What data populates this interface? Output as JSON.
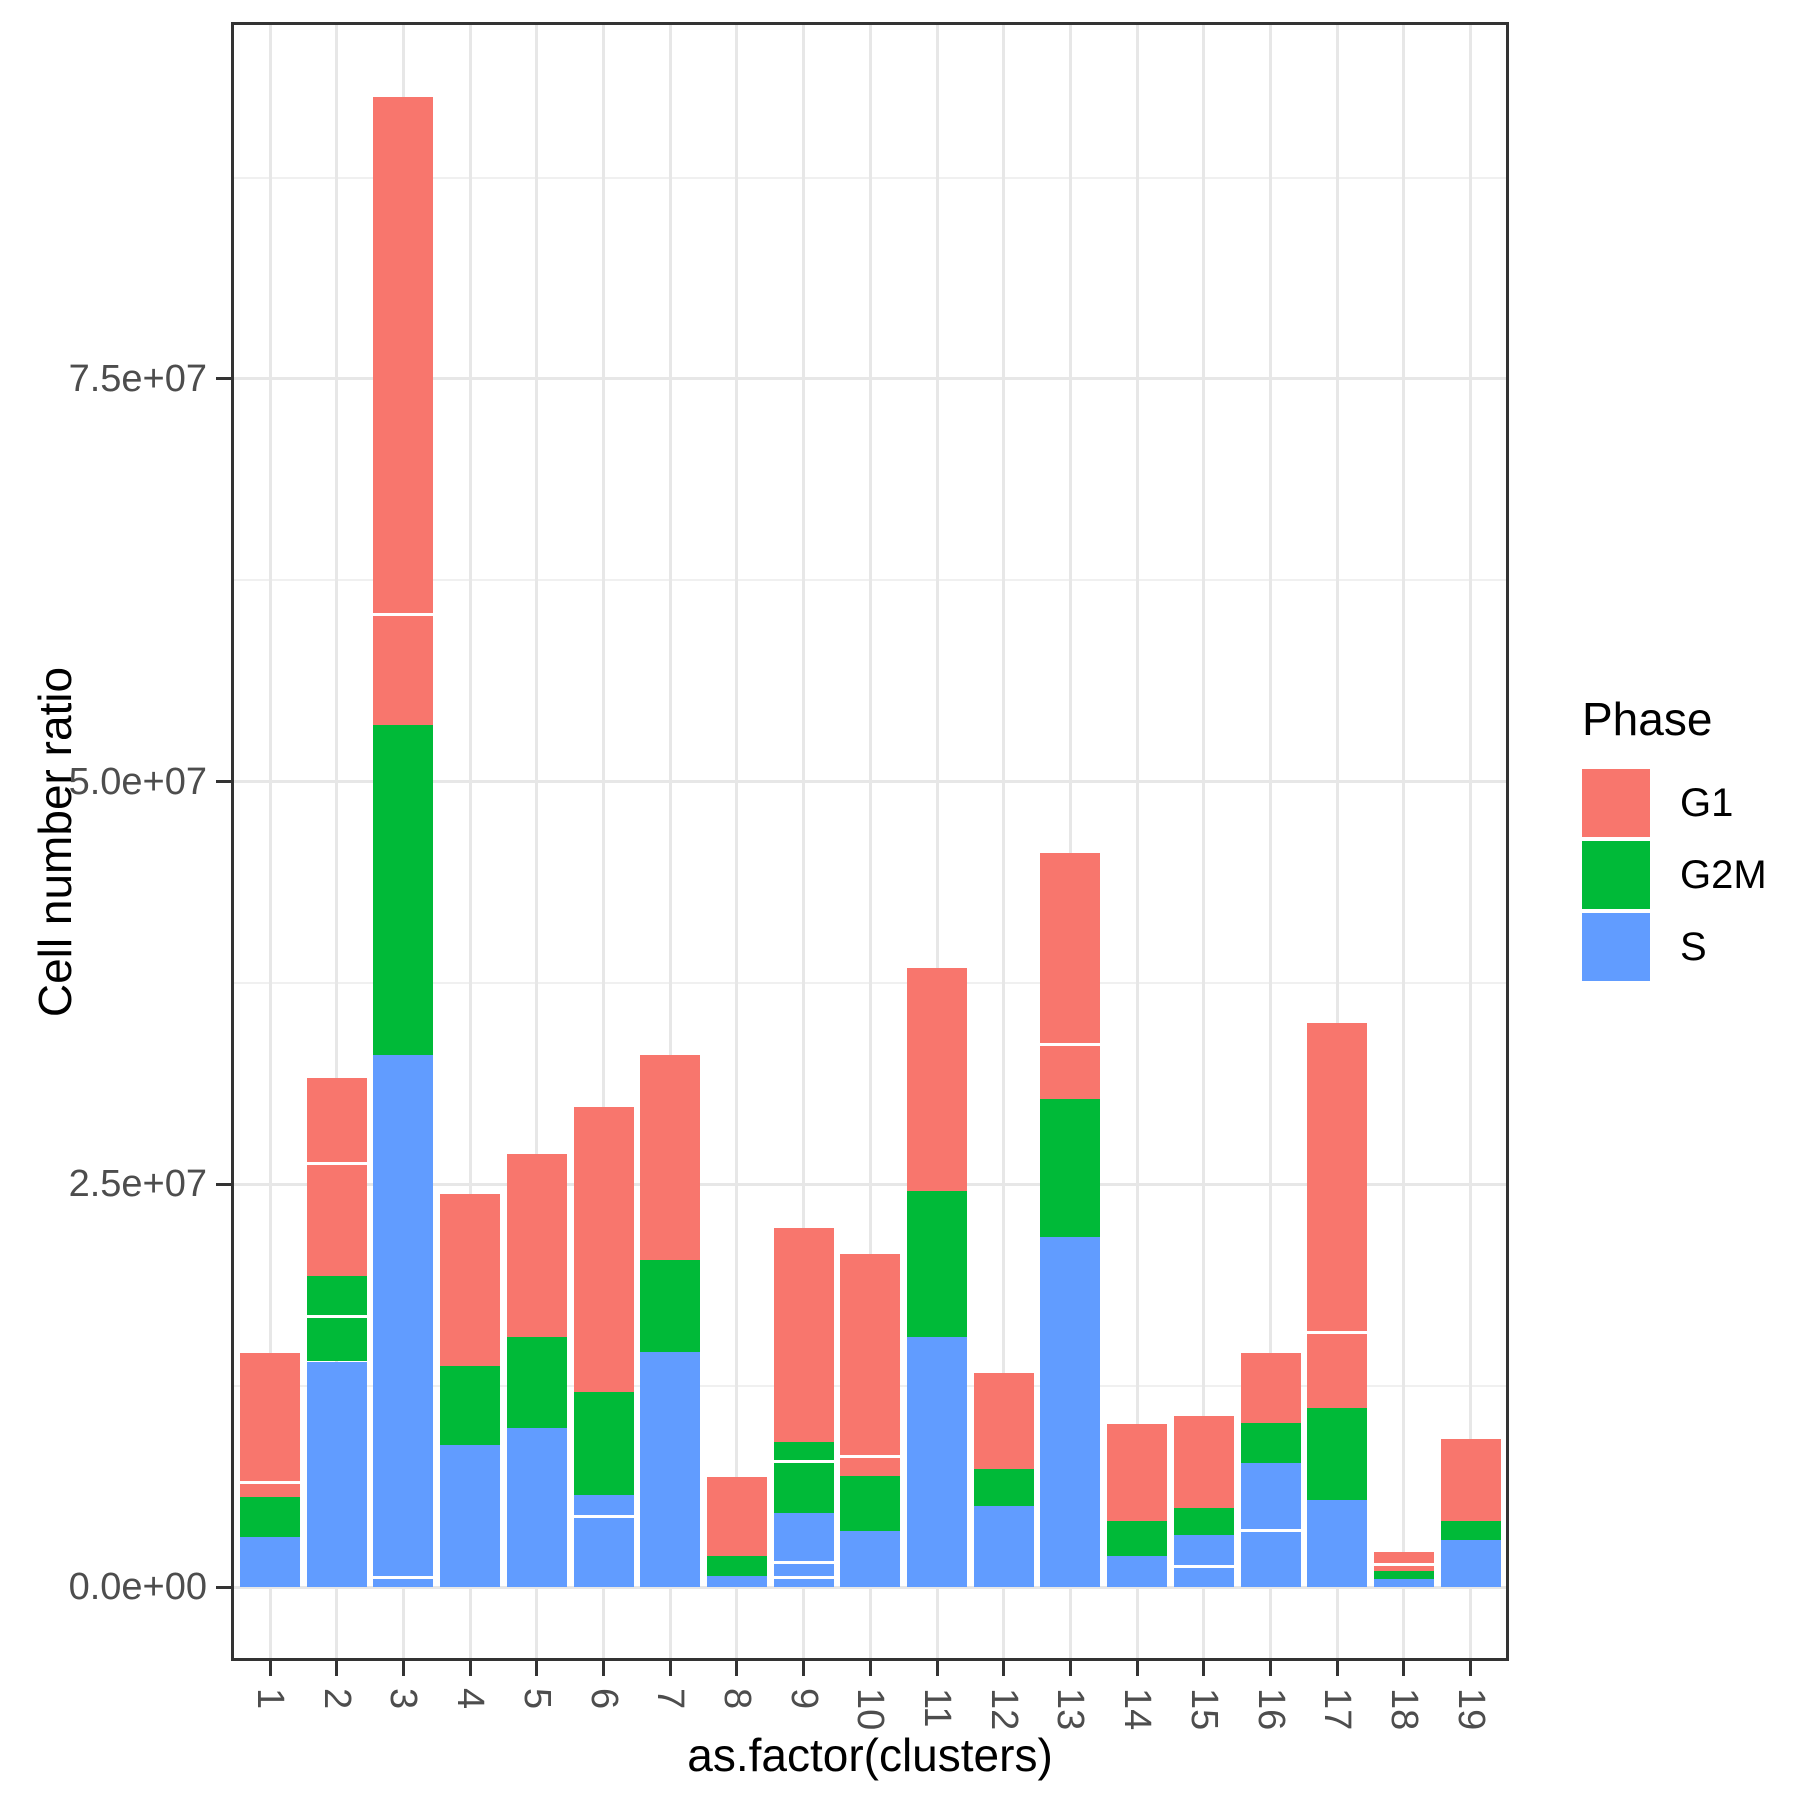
{
  "chart_data": {
    "type": "bar",
    "stacked": true,
    "title": "",
    "xlabel": "as.factor(clusters)",
    "ylabel": "Cell number ratio",
    "legend_position": "right",
    "grid": "on",
    "value_unit_multiplier": 1000000,
    "note": "values in millions; sub-arrays are stacked sub-segments separated by thin white lines",
    "categories": [
      "1",
      "2",
      "3",
      "4",
      "5",
      "6",
      "7",
      "8",
      "9",
      "10",
      "11",
      "12",
      "13",
      "14",
      "15",
      "16",
      "17",
      "18",
      "19"
    ],
    "phases_bottom_to_top": [
      "S",
      "G2M",
      "G1"
    ],
    "phase_colors": {
      "G1": "#F8766D",
      "G2M": "#00BA38",
      "S": "#619CFF"
    },
    "y_axis": {
      "tick_values": [
        0,
        25,
        50,
        75
      ],
      "tick_labels": [
        "0.0e+00",
        "2.5e+07",
        "5.0e+07",
        "7.5e+07"
      ],
      "minor_values": [
        12.5,
        37.5,
        62.5,
        87.5
      ],
      "ylim": [
        -4.6,
        97.2
      ]
    },
    "bars": [
      {
        "cluster": "1",
        "S": [
          3.1
        ],
        "G2M": [
          2.5
        ],
        "G1": [
          0.9,
          8.0
        ]
      },
      {
        "cluster": "2",
        "S": [
          14.0
        ],
        "G2M": [
          2.8,
          2.5
        ],
        "G1": [
          7.0,
          5.3
        ]
      },
      {
        "cluster": "3",
        "S": [
          0.6,
          32.4
        ],
        "G2M": [
          20.5
        ],
        "G1": [
          6.9,
          32.1
        ]
      },
      {
        "cluster": "4",
        "S": [
          8.8
        ],
        "G2M": [
          4.9
        ],
        "G1": [
          10.7
        ]
      },
      {
        "cluster": "5",
        "S": [
          9.9
        ],
        "G2M": [
          5.6
        ],
        "G1": [
          11.4
        ]
      },
      {
        "cluster": "6",
        "S": [
          4.4,
          1.3
        ],
        "G2M": [
          6.4
        ],
        "G1": [
          17.7
        ]
      },
      {
        "cluster": "7",
        "S": [
          14.6
        ],
        "G2M": [
          5.7
        ],
        "G1": [
          12.7
        ]
      },
      {
        "cluster": "8",
        "S": [
          0.7
        ],
        "G2M": [
          1.2
        ],
        "G1": [
          4.9
        ]
      },
      {
        "cluster": "9",
        "S": [
          0.6,
          0.9,
          3.1
        ],
        "G2M": [
          3.2,
          1.2
        ],
        "G1": [
          13.3
        ]
      },
      {
        "cluster": "10",
        "S": [
          3.5
        ],
        "G2M": [
          3.4
        ],
        "G1": [
          1.2,
          12.6
        ]
      },
      {
        "cluster": "11",
        "S": [
          15.5
        ],
        "G2M": [
          9.1
        ],
        "G1": [
          13.8
        ]
      },
      {
        "cluster": "12",
        "S": [
          5.0
        ],
        "G2M": [
          2.3
        ],
        "G1": [
          6.0
        ]
      },
      {
        "cluster": "13",
        "S": [
          21.7
        ],
        "G2M": [
          8.6
        ],
        "G1": [
          3.4,
          11.9
        ]
      },
      {
        "cluster": "14",
        "S": [
          1.9
        ],
        "G2M": [
          2.2
        ],
        "G1": [
          6.0
        ]
      },
      {
        "cluster": "15",
        "S": [
          1.3,
          1.9
        ],
        "G2M": [
          1.7
        ],
        "G1": [
          5.7
        ]
      },
      {
        "cluster": "16",
        "S": [
          3.5,
          4.2
        ],
        "G2M": [
          2.5
        ],
        "G1": [
          4.3
        ]
      },
      {
        "cluster": "17",
        "S": [
          5.4
        ],
        "G2M": [
          5.7
        ],
        "G1": [
          4.7,
          19.2
        ]
      },
      {
        "cluster": "18",
        "S": [
          0.5
        ],
        "G2M": [
          0.5
        ],
        "G1": [
          0.4,
          0.8
        ]
      },
      {
        "cluster": "19",
        "S": [
          2.9
        ],
        "G2M": [
          1.2
        ],
        "G1": [
          5.1
        ]
      }
    ]
  },
  "axes": {
    "x_title": "as.factor(clusters)",
    "y_title": "Cell number ratio"
  },
  "legend": {
    "title": "Phase",
    "entries": [
      {
        "label": "G1",
        "color": "#F8766D"
      },
      {
        "label": "G2M",
        "color": "#00BA38"
      },
      {
        "label": "S",
        "color": "#619CFF"
      }
    ]
  },
  "style_colors": {
    "panel_border": "#333333",
    "grid_major": "#e7e7e7",
    "grid_minor": "#f0f0f0",
    "tick_text": "#4d4d4d",
    "separator": "#ffffff"
  }
}
